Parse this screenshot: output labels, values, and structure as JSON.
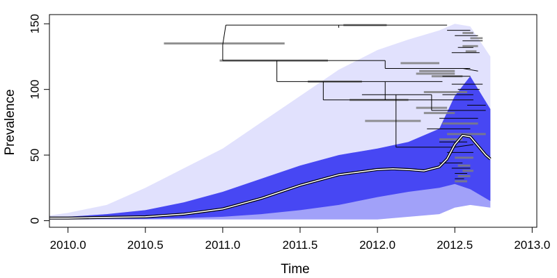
{
  "chart_data": {
    "type": "line",
    "xlabel": "Time",
    "ylabel": "Prevalence",
    "xlim": [
      2009.88,
      2013.03
    ],
    "ylim": [
      -5,
      157
    ],
    "x_ticks": [
      2010.0,
      2010.5,
      2011.0,
      2011.5,
      2012.0,
      2012.5,
      2013.0
    ],
    "x_tick_labels": [
      "2010.0",
      "2010.5",
      "2011.0",
      "2011.5",
      "2012.0",
      "2012.5",
      "2013.0"
    ],
    "y_ticks": [
      0,
      50,
      100,
      150
    ],
    "y_tick_labels": [
      "0",
      "50",
      "100",
      "150"
    ],
    "grid": false,
    "legend": "none",
    "colors": {
      "trajectories": "#2a2af0",
      "tree": "#000000",
      "node_bars": "#7f7f7f",
      "mean_outline": "#000000",
      "mean_core": "#ffffff"
    },
    "series": [
      {
        "role": "mean-trajectory",
        "x": [
          2009.88,
          2010.0,
          2010.25,
          2010.5,
          2010.75,
          2011.0,
          2011.25,
          2011.5,
          2011.75,
          2012.0,
          2012.1,
          2012.2,
          2012.3,
          2012.4,
          2012.45,
          2012.5,
          2012.55,
          2012.6,
          2012.65,
          2012.7,
          2012.73
        ],
        "y": [
          2,
          2,
          2.5,
          3,
          5,
          9,
          17,
          27,
          35,
          39,
          39.5,
          39,
          38,
          41,
          47,
          58,
          65,
          64,
          57,
          50,
          47
        ]
      },
      {
        "role": "trajectory-band-upper",
        "x": [
          2009.88,
          2010.0,
          2010.25,
          2010.5,
          2010.75,
          2011.0,
          2011.25,
          2011.5,
          2011.75,
          2012.0,
          2012.2,
          2012.4,
          2012.5,
          2012.6,
          2012.73
        ],
        "y": [
          4,
          6,
          12,
          25,
          40,
          55,
          75,
          95,
          115,
          130,
          138,
          145,
          150,
          148,
          125
        ]
      },
      {
        "role": "trajectory-band-core-upper",
        "x": [
          2009.88,
          2010.0,
          2010.25,
          2010.5,
          2010.75,
          2011.0,
          2011.25,
          2011.5,
          2011.75,
          2012.0,
          2012.2,
          2012.4,
          2012.5,
          2012.6,
          2012.73
        ],
        "y": [
          3,
          3,
          5,
          8,
          14,
          22,
          32,
          42,
          50,
          55,
          60,
          70,
          95,
          110,
          85
        ]
      },
      {
        "role": "trajectory-band-core-lower",
        "x": [
          2009.88,
          2010.0,
          2010.25,
          2010.5,
          2010.75,
          2011.0,
          2011.25,
          2011.5,
          2011.75,
          2012.0,
          2012.2,
          2012.4,
          2012.5,
          2012.6,
          2012.73
        ],
        "y": [
          1.5,
          1.5,
          1.5,
          1.5,
          2,
          3,
          5,
          8,
          12,
          18,
          22,
          25,
          28,
          24,
          15
        ]
      },
      {
        "role": "trajectory-band-lower",
        "x": [
          2009.88,
          2010.0,
          2010.5,
          2011.0,
          2011.5,
          2012.0,
          2012.4,
          2012.5,
          2012.6,
          2012.73
        ],
        "y": [
          1,
          1,
          1,
          1,
          1,
          1,
          5,
          10,
          12,
          10
        ]
      }
    ],
    "tree": {
      "edges": [
        [
          2011.02,
          149,
          2011.0,
          134
        ],
        [
          2011.02,
          149,
          2011.75,
          149
        ],
        [
          2011.0,
          134,
          2011.0,
          122
        ],
        [
          2011.0,
          122,
          2011.35,
          122
        ],
        [
          2011.35,
          122,
          2011.35,
          106
        ],
        [
          2011.35,
          106,
          2011.65,
          106
        ],
        [
          2011.35,
          122,
          2012.05,
          122
        ],
        [
          2011.75,
          149,
          2012.45,
          149
        ],
        [
          2011.75,
          149,
          2011.75,
          147
        ],
        [
          2012.05,
          122,
          2012.05,
          116
        ],
        [
          2012.05,
          116,
          2012.6,
          116
        ],
        [
          2011.65,
          106,
          2011.65,
          92
        ],
        [
          2011.65,
          106,
          2012.05,
          106
        ],
        [
          2011.65,
          92,
          2012.05,
          92
        ],
        [
          2012.05,
          106,
          2012.05,
          92
        ],
        [
          2012.05,
          92,
          2012.5,
          92
        ],
        [
          2012.05,
          106,
          2012.42,
          106
        ],
        [
          2012.3,
          116,
          2012.45,
          116
        ],
        [
          2012.55,
          116,
          2012.65,
          114
        ],
        [
          2011.9,
          96,
          2012.35,
          96
        ],
        [
          2012.12,
          96,
          2012.12,
          56
        ],
        [
          2012.12,
          56,
          2012.5,
          56
        ],
        [
          2012.35,
          96,
          2012.35,
          84
        ],
        [
          2012.35,
          84,
          2012.7,
          84
        ],
        [
          2012.5,
          92,
          2012.62,
          92
        ],
        [
          2012.58,
          88,
          2012.7,
          88
        ],
        [
          2012.4,
          78,
          2012.65,
          78
        ],
        [
          2012.32,
          70,
          2012.6,
          70
        ],
        [
          2012.4,
          60,
          2012.58,
          60
        ],
        [
          2012.5,
          56,
          2012.62,
          58
        ],
        [
          2012.45,
          52,
          2012.62,
          52
        ],
        [
          2012.4,
          44,
          2012.55,
          44
        ],
        [
          2012.48,
          40,
          2012.6,
          40
        ],
        [
          2012.5,
          36,
          2012.58,
          36
        ],
        [
          2012.5,
          32,
          2012.56,
          32
        ],
        [
          2012.55,
          137,
          2012.68,
          137
        ],
        [
          2012.5,
          141,
          2012.65,
          141
        ],
        [
          2012.45,
          145,
          2012.6,
          145
        ],
        [
          2012.52,
          132,
          2012.62,
          132
        ],
        [
          2012.48,
          128,
          2012.66,
          128
        ],
        [
          2012.42,
          110,
          2012.6,
          110
        ],
        [
          2012.48,
          104,
          2012.68,
          104
        ],
        [
          2012.52,
          100,
          2012.66,
          100
        ],
        [
          2012.42,
          96,
          2012.62,
          96
        ]
      ],
      "node_bars": [
        [
          2011.78,
          2012.06,
          149
        ],
        [
          2010.62,
          2011.4,
          135
        ],
        [
          2010.98,
          2011.68,
          122
        ],
        [
          2011.55,
          2011.9,
          106
        ],
        [
          2011.82,
          2012.2,
          92
        ],
        [
          2012.15,
          2012.4,
          120
        ],
        [
          2012.27,
          2012.5,
          114
        ],
        [
          2012.25,
          2012.5,
          112
        ],
        [
          2012.35,
          2012.55,
          110
        ],
        [
          2012.3,
          2012.58,
          98
        ],
        [
          2011.92,
          2012.28,
          76
        ],
        [
          2012.25,
          2012.45,
          86
        ],
        [
          2012.3,
          2012.5,
          82
        ],
        [
          2012.42,
          2012.65,
          74
        ],
        [
          2012.45,
          2012.7,
          66
        ],
        [
          2012.55,
          2012.62,
          143
        ],
        [
          2012.6,
          2012.68,
          139
        ],
        [
          2012.55,
          2012.65,
          133
        ],
        [
          2012.57,
          2012.64,
          129
        ],
        [
          2012.4,
          2012.55,
          62
        ],
        [
          2012.5,
          2012.62,
          48
        ],
        [
          2012.52,
          2012.6,
          42
        ],
        [
          2012.55,
          2012.62,
          38
        ],
        [
          2012.52,
          2012.6,
          34
        ],
        [
          2012.5,
          2012.58,
          30
        ]
      ]
    }
  }
}
